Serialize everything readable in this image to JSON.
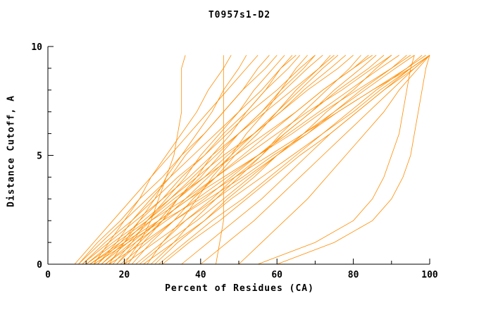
{
  "chart_data": {
    "type": "line",
    "title": "T0957s1-D2",
    "xlabel": "Percent of Residues (CA)",
    "ylabel": "Distance Cutoff, A",
    "xlim": [
      0,
      100
    ],
    "ylim": [
      0,
      10
    ],
    "x_major_ticks": [
      0,
      20,
      40,
      60,
      80,
      100
    ],
    "x_minor_step": 10,
    "y_major_ticks": [
      0,
      5,
      10
    ],
    "y_minor_step": 1,
    "grid": false,
    "legend_position": "none",
    "line_color": "#ff8c00",
    "y_levels": [
      0,
      1,
      2,
      3,
      4,
      5,
      6,
      7,
      8,
      9,
      9.6
    ],
    "series_x": [
      [
        7,
        12,
        17,
        22,
        27,
        32,
        37,
        42,
        47,
        52,
        55
      ],
      [
        8,
        13,
        19,
        24,
        30,
        35,
        41,
        46,
        51,
        57,
        60
      ],
      [
        8,
        14,
        20,
        26,
        32,
        38,
        44,
        50,
        56,
        61,
        65
      ],
      [
        9,
        15,
        22,
        28,
        34,
        41,
        47,
        53,
        60,
        66,
        70
      ],
      [
        9,
        16,
        23,
        30,
        37,
        43,
        50,
        57,
        64,
        71,
        75
      ],
      [
        10,
        17,
        25,
        32,
        39,
        46,
        54,
        61,
        68,
        76,
        80
      ],
      [
        10,
        18,
        26,
        33,
        41,
        49,
        57,
        65,
        72,
        80,
        85
      ],
      [
        11,
        19,
        27,
        36,
        44,
        52,
        60,
        68,
        77,
        85,
        90
      ],
      [
        11,
        20,
        29,
        37,
        46,
        55,
        64,
        72,
        81,
        90,
        95
      ],
      [
        12,
        21,
        30,
        40,
        49,
        58,
        67,
        76,
        85,
        95,
        100
      ],
      [
        13,
        18,
        22,
        27,
        32,
        36,
        41,
        46,
        51,
        55,
        58
      ],
      [
        13,
        19,
        24,
        30,
        35,
        41,
        46,
        52,
        57,
        63,
        66
      ],
      [
        14,
        20,
        26,
        32,
        38,
        44,
        50,
        56,
        62,
        68,
        72
      ],
      [
        14,
        21,
        27,
        34,
        41,
        47,
        54,
        61,
        67,
        74,
        78
      ],
      [
        15,
        22,
        29,
        37,
        44,
        51,
        58,
        65,
        72,
        80,
        84
      ],
      [
        15,
        23,
        31,
        39,
        47,
        55,
        63,
        71,
        79,
        87,
        92
      ],
      [
        16,
        25,
        33,
        42,
        51,
        59,
        68,
        76,
        85,
        94,
        99
      ],
      [
        17,
        22,
        26,
        31,
        36,
        40,
        45,
        50,
        54,
        59,
        62
      ],
      [
        18,
        23,
        29,
        34,
        40,
        45,
        50,
        56,
        61,
        67,
        70
      ],
      [
        18,
        24,
        30,
        36,
        42,
        48,
        54,
        60,
        66,
        72,
        76
      ],
      [
        19,
        26,
        33,
        41,
        48,
        55,
        62,
        69,
        76,
        84,
        88
      ],
      [
        20,
        28,
        36,
        44,
        52,
        60,
        67,
        75,
        83,
        91,
        96
      ],
      [
        21,
        25,
        30,
        34,
        39,
        43,
        48,
        52,
        57,
        61,
        64
      ],
      [
        22,
        27,
        33,
        38,
        44,
        49,
        55,
        60,
        65,
        71,
        74
      ],
      [
        23,
        30,
        36,
        43,
        49,
        56,
        62,
        69,
        75,
        82,
        86
      ],
      [
        24,
        31,
        39,
        46,
        53,
        60,
        68,
        75,
        82,
        90,
        94
      ],
      [
        25,
        33,
        41,
        48,
        56,
        64,
        72,
        80,
        87,
        95,
        100
      ],
      [
        26,
        30,
        35,
        39,
        43,
        48,
        52,
        57,
        61,
        65,
        68
      ],
      [
        27,
        33,
        38,
        44,
        50,
        56,
        61,
        67,
        73,
        79,
        82
      ],
      [
        28,
        34,
        41,
        47,
        54,
        60,
        67,
        73,
        80,
        86,
        90
      ],
      [
        29,
        36,
        43,
        51,
        58,
        65,
        72,
        79,
        86,
        94,
        98
      ],
      [
        30,
        37,
        45,
        52,
        59,
        66,
        74,
        81,
        88,
        96,
        100
      ],
      [
        20,
        24,
        27,
        29,
        31,
        33,
        34,
        35,
        35,
        35,
        36
      ],
      [
        44,
        45,
        46,
        46,
        46,
        46,
        46,
        46,
        46,
        46,
        46
      ],
      [
        35,
        42,
        49,
        56,
        62,
        68,
        74,
        81,
        88,
        95,
        100
      ],
      [
        40,
        47,
        54,
        60,
        66,
        72,
        78,
        84,
        90,
        96,
        100
      ],
      [
        50,
        56,
        62,
        68,
        73,
        78,
        83,
        88,
        92,
        97,
        100
      ],
      [
        12,
        16,
        20,
        24,
        27,
        31,
        35,
        39,
        42,
        46,
        48
      ],
      [
        16,
        20,
        24,
        28,
        31,
        35,
        39,
        43,
        46,
        50,
        52
      ],
      [
        55,
        70,
        80,
        85,
        88,
        90,
        92,
        93,
        94,
        95,
        96
      ],
      [
        60,
        75,
        85,
        90,
        93,
        95,
        96,
        97,
        98,
        99,
        100
      ]
    ]
  }
}
